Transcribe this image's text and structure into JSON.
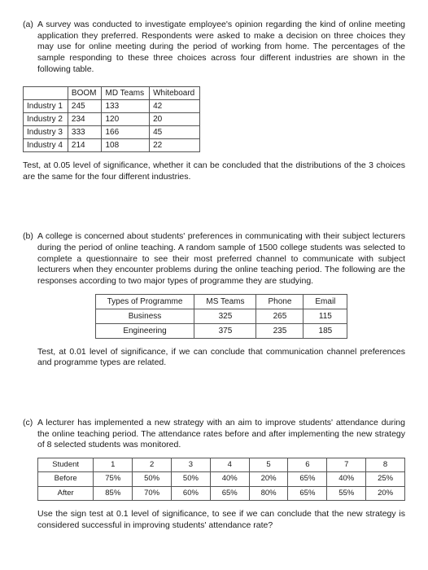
{
  "a": {
    "marker": "(a)",
    "intro": "A survey was conducted to investigate employee's opinion regarding the kind of online meeting application they preferred. Respondents were asked to make a decision on three choices they may use for online meeting during the period of working from home. The percentages of the sample responding to these three choices across four different industries are shown in the following table.",
    "table": {
      "headers": [
        "",
        "BOOM",
        "MD Teams",
        "Whiteboard"
      ],
      "rows": [
        [
          "Industry 1",
          "245",
          "133",
          "42"
        ],
        [
          "Industry 2",
          "234",
          "120",
          "20"
        ],
        [
          "Industry 3",
          "333",
          "166",
          "45"
        ],
        [
          "Industry 4",
          "214",
          "108",
          "22"
        ]
      ]
    },
    "post": "Test, at 0.05 level of significance, whether it can be concluded that the distributions of the 3 choices are the same for the four different industries."
  },
  "b": {
    "marker": "(b)",
    "intro": "A college is concerned about students' preferences in communicating with their subject lecturers during the period of online teaching. A random sample of 1500 college students was selected to complete a questionnaire to see their most preferred channel to communicate with subject lecturers when they encounter problems during the online teaching period. The following are the responses according to two major types of programme they are studying.",
    "table": {
      "headers": [
        "Types of Programme",
        "MS Teams",
        "Phone",
        "Email"
      ],
      "rows": [
        [
          "Business",
          "325",
          "265",
          "115"
        ],
        [
          "Engineering",
          "375",
          "235",
          "185"
        ]
      ]
    },
    "post": "Test, at 0.01 level of significance, if we can conclude that communication channel preferences and programme types are related."
  },
  "c": {
    "marker": "(c)",
    "intro": "A lecturer has implemented a new strategy with an aim to improve students' attendance during the online teaching period. The attendance rates before and after implementing the new strategy of 8 selected students was monitored.",
    "table": {
      "headers": [
        "Student",
        "1",
        "2",
        "3",
        "4",
        "5",
        "6",
        "7",
        "8"
      ],
      "rows": [
        [
          "Before",
          "75%",
          "50%",
          "50%",
          "40%",
          "20%",
          "65%",
          "40%",
          "25%"
        ],
        [
          "After",
          "85%",
          "70%",
          "60%",
          "65%",
          "80%",
          "65%",
          "55%",
          "20%"
        ]
      ]
    },
    "post": "Use the sign test at 0.1 level of significance, to see if we can conclude that the new strategy is considered successful in improving students' attendance rate?"
  }
}
